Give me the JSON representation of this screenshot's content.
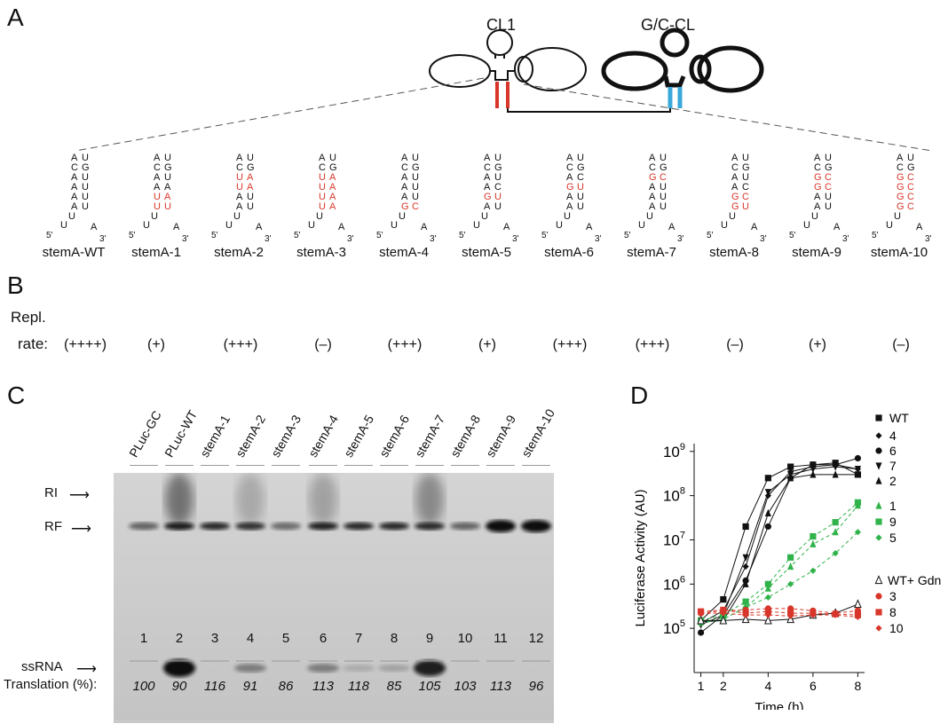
{
  "panels": {
    "a": "A",
    "b": "B",
    "c": "C",
    "d": "D"
  },
  "colors": {
    "red": "#d8362a",
    "blue": "#3aa8d8",
    "green": "#2fb34a",
    "black": "#111111"
  },
  "panel_a": {
    "cl1_label": "CL1",
    "gccl_label": "G/C-CL",
    "stems": [
      {
        "name": "stemA-WT",
        "left": [
          "A",
          "C",
          "A",
          "A",
          "A",
          "A",
          "U"
        ],
        "right": [
          "U",
          "G",
          "U",
          "U",
          "U",
          "U",
          "A"
        ],
        "red": []
      },
      {
        "name": "stemA-1",
        "left": [
          "A",
          "C",
          "A",
          "A",
          "U",
          "U",
          "U"
        ],
        "right": [
          "U",
          "G",
          "U",
          "A",
          "A",
          "U",
          "A"
        ],
        "red": [
          4,
          5
        ]
      },
      {
        "name": "stemA-2",
        "left": [
          "A",
          "C",
          "U",
          "U",
          "A",
          "A",
          "U"
        ],
        "right": [
          "U",
          "G",
          "A",
          "A",
          "U",
          "U",
          "A"
        ],
        "red": [
          2,
          3
        ]
      },
      {
        "name": "stemA-3",
        "left": [
          "A",
          "C",
          "U",
          "U",
          "U",
          "U",
          "U"
        ],
        "right": [
          "U",
          "G",
          "A",
          "A",
          "A",
          "A",
          "A"
        ],
        "red": [
          2,
          3,
          4,
          5
        ]
      },
      {
        "name": "stemA-4",
        "left": [
          "A",
          "C",
          "A",
          "A",
          "A",
          "G",
          "U"
        ],
        "right": [
          "U",
          "G",
          "U",
          "U",
          "U",
          "C",
          "A"
        ],
        "red": [
          5
        ]
      },
      {
        "name": "stemA-5",
        "left": [
          "A",
          "C",
          "A",
          "A",
          "G",
          "A",
          "U"
        ],
        "right": [
          "U",
          "G",
          "U",
          "C",
          "U",
          "U",
          "A"
        ],
        "red": [
          4
        ]
      },
      {
        "name": "stemA-6",
        "left": [
          "A",
          "C",
          "A",
          "G",
          "A",
          "A",
          "U"
        ],
        "right": [
          "U",
          "G",
          "C",
          "U",
          "U",
          "U",
          "A"
        ],
        "red": [
          3
        ]
      },
      {
        "name": "stemA-7",
        "left": [
          "A",
          "C",
          "G",
          "A",
          "A",
          "A",
          "U"
        ],
        "right": [
          "U",
          "G",
          "C",
          "U",
          "U",
          "U",
          "A"
        ],
        "red": [
          2
        ]
      },
      {
        "name": "stemA-8",
        "left": [
          "A",
          "C",
          "A",
          "A",
          "G",
          "G",
          "U"
        ],
        "right": [
          "U",
          "G",
          "U",
          "C",
          "C",
          "U",
          "A"
        ],
        "red": [
          4,
          5
        ]
      },
      {
        "name": "stemA-9",
        "left": [
          "A",
          "C",
          "G",
          "G",
          "A",
          "A",
          "U"
        ],
        "right": [
          "U",
          "G",
          "C",
          "C",
          "U",
          "U",
          "A"
        ],
        "red": [
          2,
          3
        ]
      },
      {
        "name": "stemA-10",
        "left": [
          "A",
          "C",
          "G",
          "G",
          "G",
          "G",
          "U"
        ],
        "right": [
          "U",
          "G",
          "C",
          "C",
          "C",
          "C",
          "A"
        ],
        "red": [
          2,
          3,
          4,
          5
        ]
      }
    ],
    "five_prime": "5'",
    "three_prime": "3'"
  },
  "panel_b": {
    "label_line1": "Repl.",
    "label_line2": "rate:",
    "rates": [
      "(++++)",
      "(+)",
      "(+++)",
      "(–)",
      "(+++)",
      "(+)",
      "(+++)",
      "(+++)",
      "(–)",
      "(+)",
      "(–)"
    ]
  },
  "panel_c": {
    "lanes": [
      "PLuc-GC",
      "PLuc-WT",
      "stemA-1",
      "stemA-2",
      "stemA-3",
      "stemA-4",
      "stemA-5",
      "stemA-6",
      "stemA-7",
      "stemA-8",
      "stemA-9",
      "stemA-10"
    ],
    "lane_numbers": [
      "1",
      "2",
      "3",
      "4",
      "5",
      "6",
      "7",
      "8",
      "9",
      "10",
      "11",
      "12"
    ],
    "translation_label": "Translation (%):",
    "translation": [
      "100",
      "90",
      "116",
      "91",
      "86",
      "113",
      "118",
      "85",
      "105",
      "103",
      "113",
      "96"
    ],
    "band_labels": {
      "ri": "RI",
      "rf": "RF",
      "ssrna": "ssRNA"
    }
  },
  "chart_data": {
    "type": "line",
    "xlabel": "Time (h)",
    "ylabel": "Luciferase Activity (AU)",
    "x_ticks": [
      "1",
      "2",
      "4",
      "6",
      "8"
    ],
    "y_ticks": [
      "10^5",
      "10^6",
      "10^7",
      "10^8",
      "10^9"
    ],
    "log_y": true,
    "ylim": [
      10000.0,
      1500000000.0
    ],
    "xlim": [
      0.7,
      8.3
    ],
    "series": [
      {
        "name": "WT",
        "color": "#111111",
        "marker": "square",
        "dash": false,
        "x": [
          1,
          2,
          3,
          4,
          5,
          6,
          7,
          8
        ],
        "y": [
          150000.0,
          450000.0,
          20000000.0,
          250000000.0,
          450000000.0,
          500000000.0,
          550000000.0,
          300000000.0
        ]
      },
      {
        "name": "4",
        "color": "#111111",
        "marker": "diamond",
        "dash": false,
        "x": [
          1,
          2,
          3,
          4,
          5,
          6,
          7,
          8
        ],
        "y": [
          130000.0,
          250000.0,
          2500000.0,
          100000000.0,
          350000000.0,
          450000000.0,
          500000000.0,
          400000000.0
        ]
      },
      {
        "name": "6",
        "color": "#111111",
        "marker": "circle",
        "dash": false,
        "x": [
          1,
          2,
          3,
          4,
          5,
          6,
          7,
          8
        ],
        "y": [
          80000.0,
          200000.0,
          1200000.0,
          20000000.0,
          250000000.0,
          500000000.0,
          500000000.0,
          700000000.0
        ]
      },
      {
        "name": "7",
        "color": "#111111",
        "marker": "tri-down",
        "dash": false,
        "x": [
          1,
          2,
          3,
          4,
          5,
          6,
          7,
          8
        ],
        "y": [
          120000.0,
          200000.0,
          4000000.0,
          120000000.0,
          300000000.0,
          400000000.0,
          450000000.0,
          400000000.0
        ]
      },
      {
        "name": "2",
        "color": "#111111",
        "marker": "tri-up",
        "dash": false,
        "x": [
          1,
          2,
          3,
          4,
          5,
          6,
          7,
          8
        ],
        "y": [
          140000.0,
          150000.0,
          1000000.0,
          40000000.0,
          250000000.0,
          300000000.0,
          300000000.0,
          300000000.0
        ]
      },
      {
        "name": "1",
        "color": "#2fb34a",
        "marker": "tri-up",
        "dash": true,
        "x": [
          1,
          2,
          3,
          4,
          5,
          6,
          7,
          8
        ],
        "y": [
          140000.0,
          160000.0,
          300000.0,
          800000.0,
          2500000.0,
          8000000.0,
          15000000.0,
          60000000.0
        ]
      },
      {
        "name": "9",
        "color": "#2fb34a",
        "marker": "square",
        "dash": true,
        "x": [
          1,
          2,
          3,
          4,
          5,
          6,
          7,
          8
        ],
        "y": [
          150000.0,
          200000.0,
          400000.0,
          1000000.0,
          4000000.0,
          12000000.0,
          25000000.0,
          70000000.0
        ]
      },
      {
        "name": "5",
        "color": "#2fb34a",
        "marker": "diamond",
        "dash": true,
        "x": [
          1,
          2,
          3,
          4,
          5,
          6,
          7,
          8
        ],
        "y": [
          130000.0,
          160000.0,
          300000.0,
          500000.0,
          1000000.0,
          2000000.0,
          5000000.0,
          15000000.0
        ]
      },
      {
        "name": "WT+ Gdn",
        "color": "#111111",
        "marker": "tri-open",
        "dash": false,
        "x": [
          1,
          2,
          3,
          4,
          5,
          6,
          7,
          8
        ],
        "y": [
          150000.0,
          150000.0,
          160000.0,
          150000.0,
          160000.0,
          200000.0,
          220000.0,
          350000.0
        ]
      },
      {
        "name": "3",
        "color": "#d8362a",
        "marker": "circle",
        "dash": true,
        "x": [
          1,
          2,
          3,
          4,
          5,
          6,
          7,
          8
        ],
        "y": [
          220000.0,
          250000.0,
          260000.0,
          280000.0,
          280000.0,
          250000.0,
          220000.0,
          250000.0
        ]
      },
      {
        "name": "8",
        "color": "#d8362a",
        "marker": "square",
        "dash": true,
        "x": [
          1,
          2,
          3,
          4,
          5,
          6,
          7,
          8
        ],
        "y": [
          240000.0,
          260000.0,
          220000.0,
          240000.0,
          220000.0,
          220000.0,
          210000.0,
          200000.0
        ]
      },
      {
        "name": "10",
        "color": "#d8362a",
        "marker": "diamond",
        "dash": true,
        "x": [
          1,
          2,
          3,
          4,
          5,
          6,
          7,
          8
        ],
        "y": [
          220000.0,
          220000.0,
          200000.0,
          200000.0,
          190000.0,
          200000.0,
          200000.0,
          180000.0
        ]
      }
    ]
  }
}
